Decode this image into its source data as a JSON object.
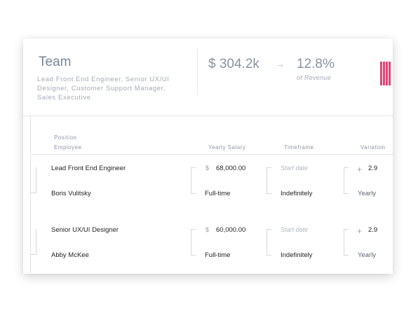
{
  "header": {
    "title": "Team",
    "description": "Lead Front End Engineer, Senior UX/UI Designer, Customer Support Manager, Sales Executive",
    "amount": "$ 304.2k",
    "arrow": "→",
    "percent": "12.8%",
    "percent_label": "of Revenue",
    "accent_color": "#e0457a"
  },
  "table": {
    "headers": {
      "position": "Position",
      "employee": "Employee",
      "yearly_salary": "Yearly Salary",
      "timeframe": "Timeframe",
      "variation": "Variation"
    },
    "rows": [
      {
        "position": "Lead Front End Engineer",
        "employee": "Boris Vulitsky",
        "currency": "$",
        "salary": "68,000.00",
        "employment": "Full-time",
        "start_placeholder": "Start date",
        "timeframe": "Indefinitely",
        "variation_sign": "+",
        "variation": "2.9",
        "variation_period": "Yearly"
      },
      {
        "position": "Senior UX/UI Designer",
        "employee": "Abby McKee",
        "currency": "$",
        "salary": "60,000.00",
        "employment": "Full-time",
        "start_placeholder": "Start date",
        "timeframe": "Indefinitely",
        "variation_sign": "+",
        "variation": "2.9",
        "variation_period": "Yearly"
      }
    ]
  }
}
